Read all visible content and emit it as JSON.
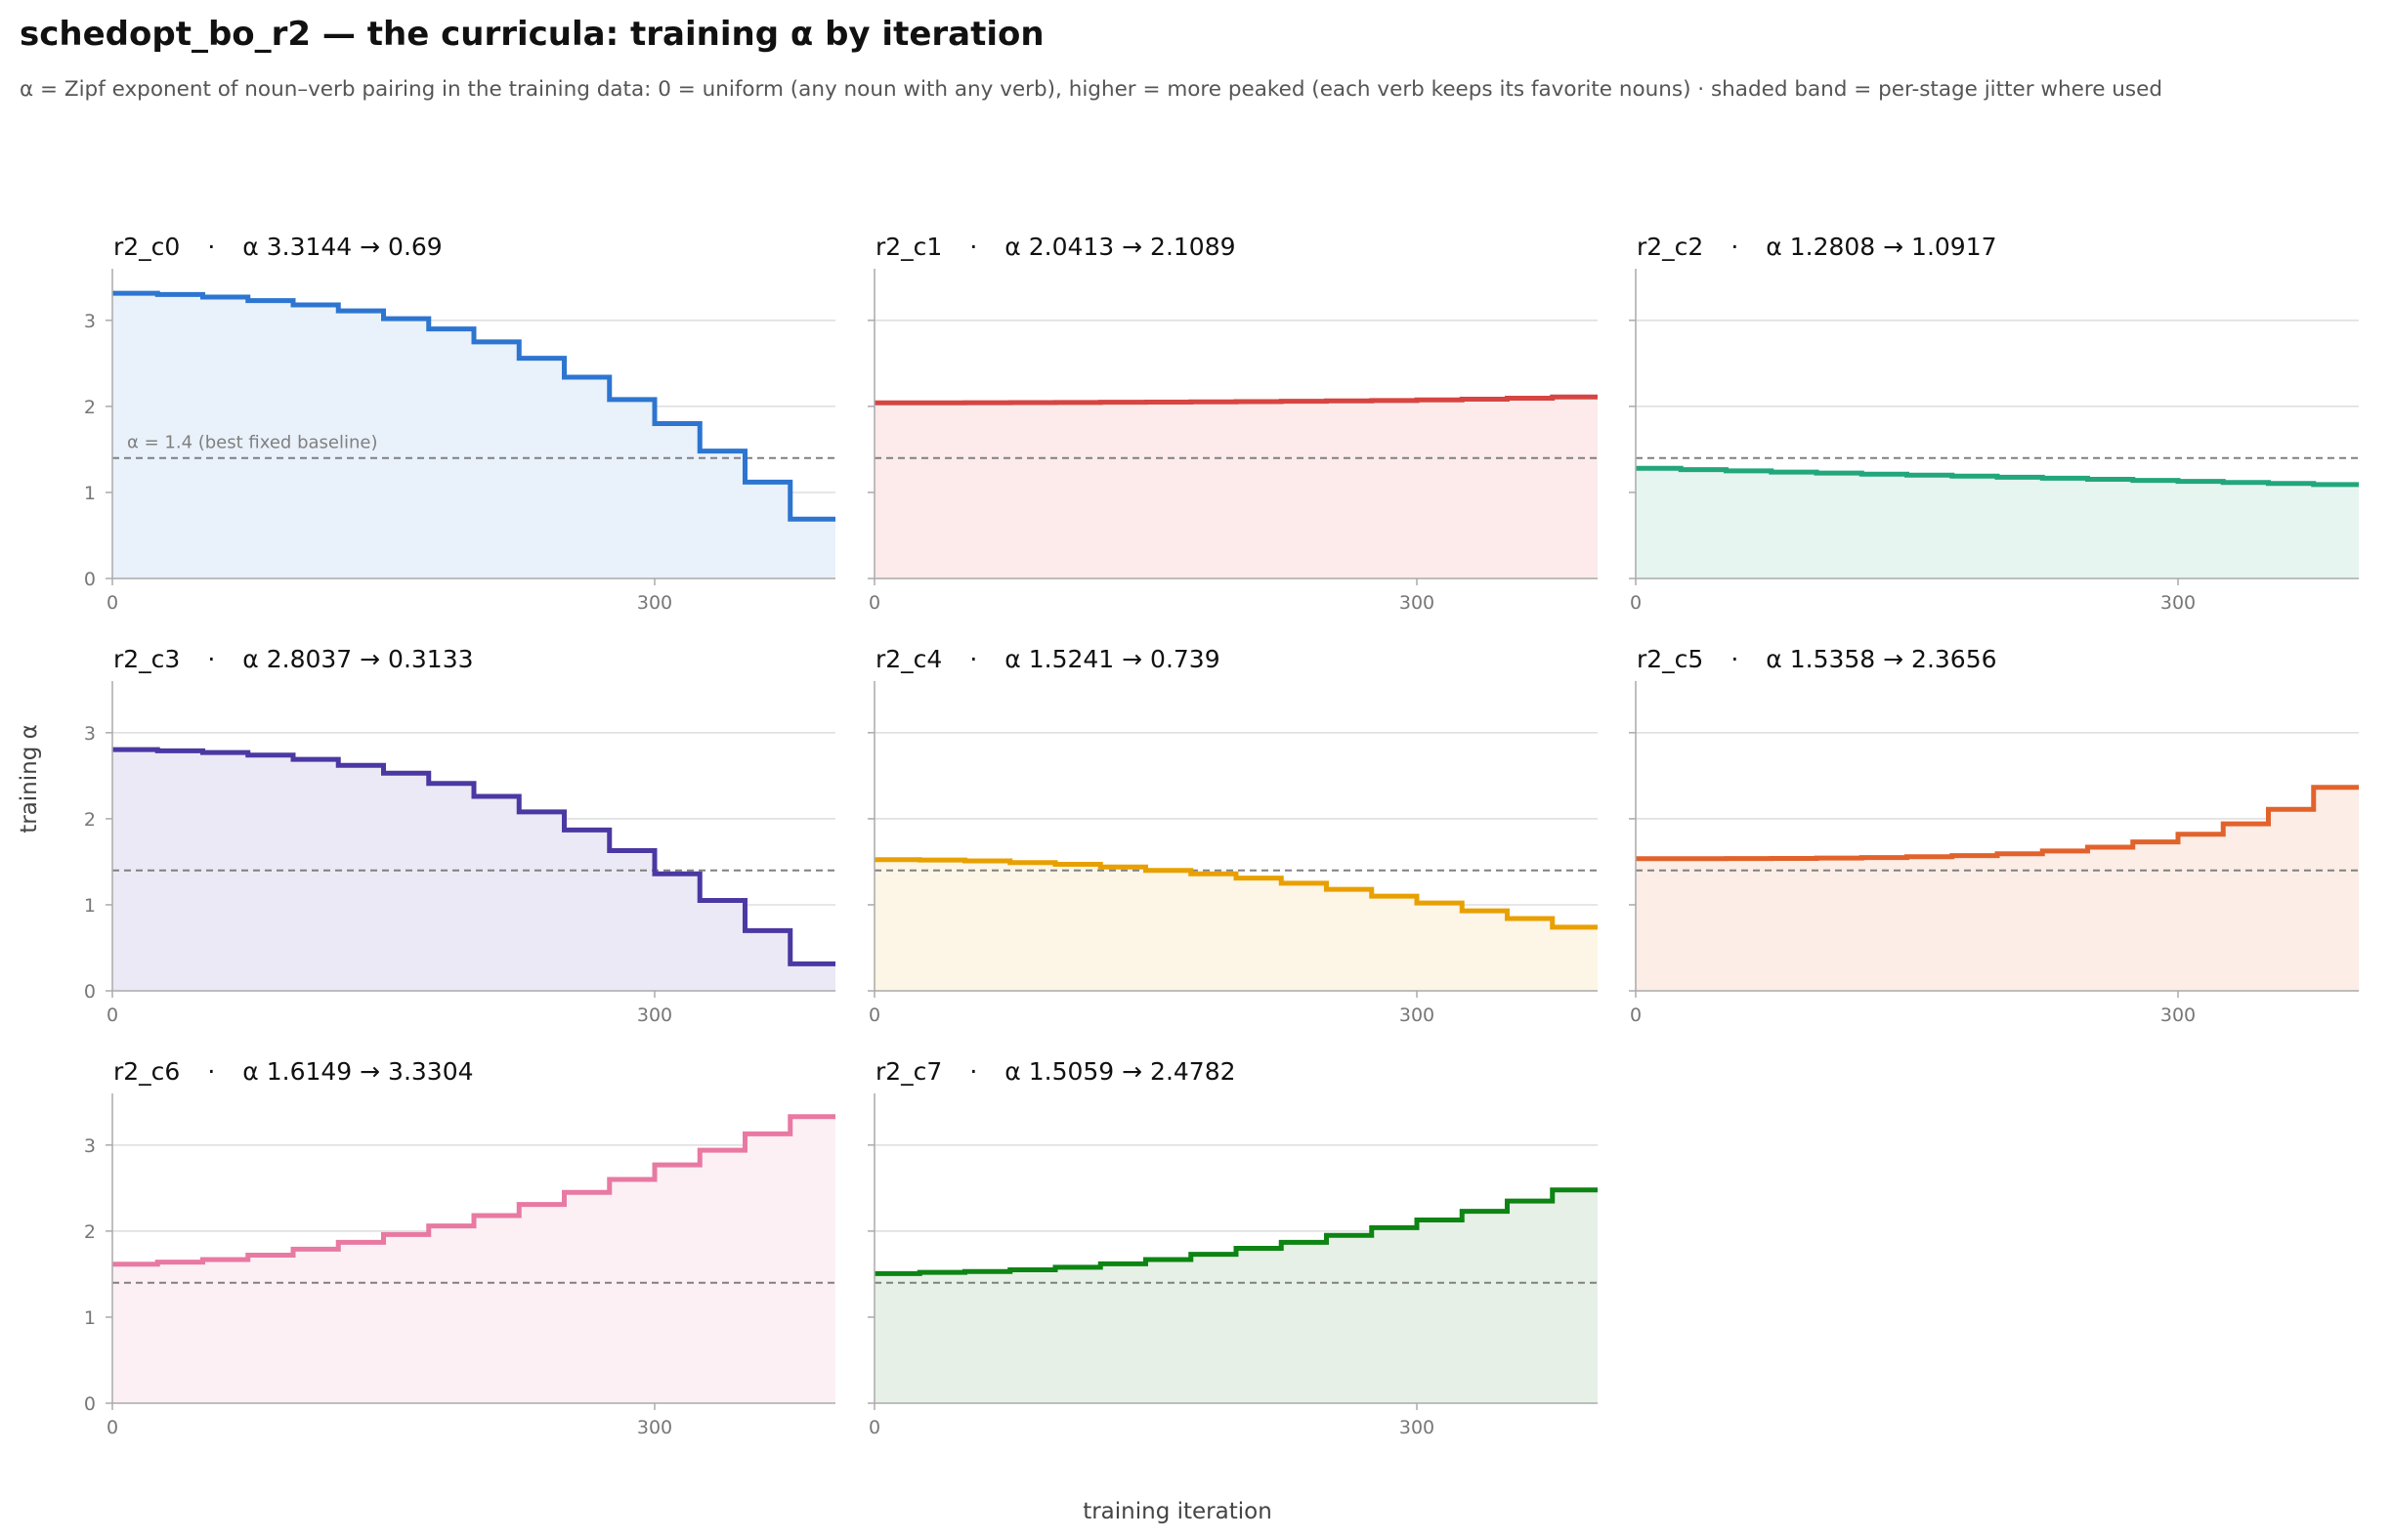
{
  "title": "schedopt_bo_r2 — the curricula: training α by iteration",
  "subtitle": "α = Zipf exponent of noun–verb pairing in the training data: 0 = uniform (any noun with any verb), higher = more peaked (each verb keeps its favorite nouns) · shaded band = per-stage jitter where used",
  "xlabel": "training iteration",
  "ylabel": "training α",
  "baseline_label": "α = 1.4 (best fixed baseline)",
  "colors": {
    "axis": "#aaaaaa",
    "grid": "#dddddd",
    "tick_text": "#777777",
    "baseline": "#808080"
  },
  "chart_data": [
    {
      "type": "line",
      "step": true,
      "id": "r2_c0",
      "title_name": "r2_c0",
      "title_sep": "·",
      "title_formula": "α 3.3144 → 0.69",
      "color": "#2d75d0",
      "fill": "#e9f1fa",
      "xlim": [
        0,
        400
      ],
      "ylim": [
        0,
        3.6
      ],
      "xticks": [
        0,
        300
      ],
      "yticks": [
        0,
        1,
        2,
        3
      ],
      "baseline": 1.4,
      "show_baseline_label": true,
      "stage_edges": [
        0,
        25,
        50,
        75,
        100,
        125,
        150,
        175,
        200,
        225,
        250,
        275,
        300,
        325,
        350,
        375,
        400
      ],
      "values": [
        3.3144,
        3.3,
        3.27,
        3.23,
        3.18,
        3.11,
        3.02,
        2.9,
        2.75,
        2.56,
        2.34,
        2.08,
        1.8,
        1.48,
        1.12,
        0.69
      ]
    },
    {
      "type": "line",
      "step": true,
      "id": "r2_c1",
      "title_name": "r2_c1",
      "title_sep": "·",
      "title_formula": "α 2.0413 → 2.1089",
      "color": "#d64541",
      "fill": "#fcebea",
      "xlim": [
        0,
        400
      ],
      "ylim": [
        0,
        3.6
      ],
      "xticks": [
        0,
        300
      ],
      "yticks": [
        0,
        1,
        2,
        3
      ],
      "baseline": 1.4,
      "show_baseline_label": false,
      "stage_edges": [
        0,
        25,
        50,
        75,
        100,
        125,
        150,
        175,
        200,
        225,
        250,
        275,
        300,
        325,
        350,
        375,
        400
      ],
      "values": [
        2.0413,
        2.042,
        2.043,
        2.044,
        2.046,
        2.048,
        2.05,
        2.053,
        2.056,
        2.06,
        2.064,
        2.069,
        2.076,
        2.084,
        2.095,
        2.1089
      ]
    },
    {
      "type": "line",
      "step": true,
      "id": "r2_c2",
      "title_name": "r2_c2",
      "title_sep": "·",
      "title_formula": "α 1.2808 → 1.0917",
      "color": "#22a67c",
      "fill": "#e6f5ef",
      "xlim": [
        0,
        400
      ],
      "ylim": [
        0,
        3.6
      ],
      "xticks": [
        0,
        300
      ],
      "yticks": [
        0,
        1,
        2,
        3
      ],
      "baseline": 1.4,
      "show_baseline_label": false,
      "stage_edges": [
        0,
        25,
        50,
        75,
        100,
        125,
        150,
        175,
        200,
        225,
        250,
        275,
        300,
        325,
        350,
        375,
        400
      ],
      "values": [
        1.2808,
        1.265,
        1.25,
        1.237,
        1.225,
        1.213,
        1.201,
        1.189,
        1.177,
        1.165,
        1.152,
        1.14,
        1.128,
        1.116,
        1.104,
        1.0917
      ]
    },
    {
      "type": "line",
      "step": true,
      "id": "r2_c3",
      "title_name": "r2_c3",
      "title_sep": "·",
      "title_formula": "α 2.8037 → 0.3133",
      "color": "#4b38a3",
      "fill": "#ebe9f5",
      "xlim": [
        0,
        400
      ],
      "ylim": [
        0,
        3.6
      ],
      "xticks": [
        0,
        300
      ],
      "yticks": [
        0,
        1,
        2,
        3
      ],
      "baseline": 1.4,
      "show_baseline_label": false,
      "stage_edges": [
        0,
        25,
        50,
        75,
        100,
        125,
        150,
        175,
        200,
        225,
        250,
        275,
        300,
        325,
        350,
        375,
        400
      ],
      "values": [
        2.8037,
        2.79,
        2.77,
        2.74,
        2.69,
        2.62,
        2.53,
        2.41,
        2.26,
        2.08,
        1.87,
        1.63,
        1.36,
        1.05,
        0.7,
        0.3133
      ]
    },
    {
      "type": "line",
      "step": true,
      "id": "r2_c4",
      "title_name": "r2_c4",
      "title_sep": "·",
      "title_formula": "α 1.5241 → 0.739",
      "color": "#e8a000",
      "fill": "#fdf5e5",
      "xlim": [
        0,
        400
      ],
      "ylim": [
        0,
        3.6
      ],
      "xticks": [
        0,
        300
      ],
      "yticks": [
        0,
        1,
        2,
        3
      ],
      "baseline": 1.4,
      "show_baseline_label": false,
      "stage_edges": [
        0,
        25,
        50,
        75,
        100,
        125,
        150,
        175,
        200,
        225,
        250,
        275,
        300,
        325,
        350,
        375,
        400
      ],
      "values": [
        1.5241,
        1.52,
        1.51,
        1.49,
        1.47,
        1.44,
        1.4,
        1.36,
        1.31,
        1.25,
        1.18,
        1.1,
        1.02,
        0.93,
        0.84,
        0.739
      ]
    },
    {
      "type": "line",
      "step": true,
      "id": "r2_c5",
      "title_name": "r2_c5",
      "title_sep": "·",
      "title_formula": "α 1.5358 → 2.3656",
      "color": "#e2622c",
      "fill": "#fcede6",
      "xlim": [
        0,
        400
      ],
      "ylim": [
        0,
        3.6
      ],
      "xticks": [
        0,
        300
      ],
      "yticks": [
        0,
        1,
        2,
        3
      ],
      "baseline": 1.4,
      "show_baseline_label": false,
      "stage_edges": [
        0,
        25,
        50,
        75,
        100,
        125,
        150,
        175,
        200,
        225,
        250,
        275,
        300,
        325,
        350,
        375,
        400
      ],
      "values": [
        1.5358,
        1.536,
        1.537,
        1.539,
        1.543,
        1.549,
        1.558,
        1.572,
        1.593,
        1.625,
        1.67,
        1.73,
        1.82,
        1.94,
        2.11,
        2.3656
      ]
    },
    {
      "type": "line",
      "step": true,
      "id": "r2_c6",
      "title_name": "r2_c6",
      "title_sep": "·",
      "title_formula": "α 1.6149 → 3.3304",
      "color": "#e879a2",
      "fill": "#fcf0f4",
      "xlim": [
        0,
        400
      ],
      "ylim": [
        0,
        3.6
      ],
      "xticks": [
        0,
        300
      ],
      "yticks": [
        0,
        1,
        2,
        3
      ],
      "baseline": 1.4,
      "show_baseline_label": false,
      "stage_edges": [
        0,
        25,
        50,
        75,
        100,
        125,
        150,
        175,
        200,
        225,
        250,
        275,
        300,
        325,
        350,
        375,
        400
      ],
      "values": [
        1.6149,
        1.64,
        1.67,
        1.72,
        1.79,
        1.87,
        1.96,
        2.06,
        2.18,
        2.31,
        2.45,
        2.6,
        2.77,
        2.94,
        3.13,
        3.3304
      ]
    },
    {
      "type": "line",
      "step": true,
      "id": "r2_c7",
      "title_name": "r2_c7",
      "title_sep": "·",
      "title_formula": "α 1.5059 → 2.4782",
      "color": "#0d8413",
      "fill": "#e6f0e6",
      "xlim": [
        0,
        400
      ],
      "ylim": [
        0,
        3.6
      ],
      "xticks": [
        0,
        300
      ],
      "yticks": [
        0,
        1,
        2,
        3
      ],
      "baseline": 1.4,
      "show_baseline_label": false,
      "stage_edges": [
        0,
        25,
        50,
        75,
        100,
        125,
        150,
        175,
        200,
        225,
        250,
        275,
        300,
        325,
        350,
        375,
        400
      ],
      "values": [
        1.5059,
        1.52,
        1.53,
        1.55,
        1.58,
        1.62,
        1.67,
        1.73,
        1.8,
        1.87,
        1.95,
        2.04,
        2.13,
        2.23,
        2.35,
        2.4782
      ]
    }
  ]
}
